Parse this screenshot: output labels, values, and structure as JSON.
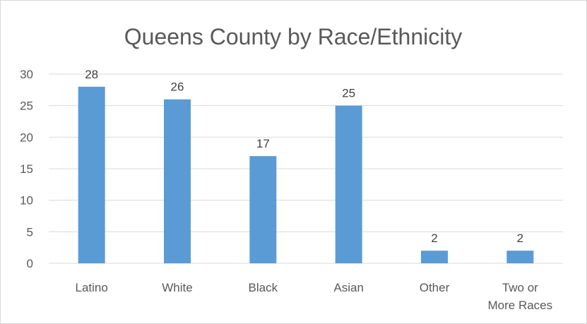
{
  "chart_data": {
    "type": "bar",
    "title": "Queens County by Race/Ethnicity",
    "categories": [
      "Latino",
      "White",
      "Black",
      "Asian",
      "Other",
      "Two or More Races"
    ],
    "category_lines": [
      [
        "Latino"
      ],
      [
        "White"
      ],
      [
        "Black"
      ],
      [
        "Asian"
      ],
      [
        "Other"
      ],
      [
        "Two or",
        "More Races"
      ]
    ],
    "values": [
      28,
      26,
      17,
      25,
      2,
      2
    ],
    "data_labels": [
      "28",
      "26",
      "17",
      "25",
      "2",
      "2"
    ],
    "ylim": [
      0,
      30
    ],
    "yticks": [
      0,
      5,
      10,
      15,
      20,
      25,
      30
    ],
    "xlabel": "",
    "ylabel": "",
    "grid": true,
    "legend": "none",
    "bar_color": "#5b9bd5"
  }
}
